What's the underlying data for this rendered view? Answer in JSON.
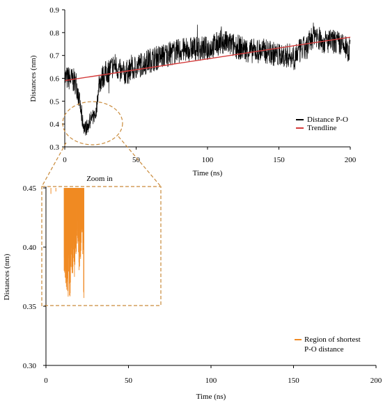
{
  "chart_data": [
    {
      "type": "line",
      "xlabel": "Time (ns)",
      "ylabel": "Distances (nm)",
      "xlim": [
        0,
        200
      ],
      "ylim": [
        0.3,
        0.9
      ],
      "xticks": [
        "0",
        "50",
        "100",
        "150",
        "200"
      ],
      "yticks": [
        "0.3",
        "0.4",
        "0.5",
        "0.6",
        "0.7",
        "0.8",
        "0.9"
      ],
      "legend_position": "right-middle",
      "series": [
        {
          "name": "Distance P-O",
          "color": "#000000",
          "x": [
            0,
            3,
            6,
            8,
            10,
            12,
            14,
            16,
            18,
            20,
            22,
            24,
            26,
            28,
            30,
            35,
            40,
            45,
            50,
            60,
            70,
            80,
            90,
            100,
            110,
            120,
            130,
            140,
            150,
            160,
            170,
            175,
            180,
            190,
            200
          ],
          "values": [
            0.6,
            0.6,
            0.59,
            0.58,
            0.52,
            0.42,
            0.38,
            0.39,
            0.42,
            0.43,
            0.45,
            0.58,
            0.6,
            0.62,
            0.63,
            0.66,
            0.62,
            0.63,
            0.65,
            0.68,
            0.7,
            0.72,
            0.73,
            0.73,
            0.76,
            0.74,
            0.72,
            0.72,
            0.7,
            0.7,
            0.74,
            0.8,
            0.76,
            0.76,
            0.72
          ]
        },
        {
          "name": "Trendline",
          "color": "#d43a3a",
          "x": [
            0,
            200
          ],
          "values": [
            0.59,
            0.78
          ]
        }
      ]
    },
    {
      "type": "line",
      "xlabel": "Time (ns)",
      "ylabel": "Distances (nm)",
      "xlim": [
        0,
        200
      ],
      "ylim": [
        0.3,
        0.45
      ],
      "xticks": [
        "0",
        "50",
        "100",
        "150",
        "200"
      ],
      "yticks": [
        "0.30",
        "0.35",
        "0.40",
        "0.45"
      ],
      "legend_position": "bottom-right",
      "series": [
        {
          "name": "Region of shortest P-O distance",
          "color": "#f08a24",
          "x": [
            11,
            12,
            13,
            14,
            15,
            16,
            17,
            18,
            19,
            20,
            21,
            22,
            23
          ],
          "values": [
            0.38,
            0.37,
            0.36,
            0.356,
            0.36,
            0.38,
            0.37,
            0.39,
            0.4,
            0.38,
            0.39,
            0.41,
            0.353
          ]
        }
      ]
    }
  ],
  "annotation": {
    "zoom_label": "Zoom in"
  },
  "legend_bottom": {
    "line1": "Region of shortest",
    "line2": "P-O distance"
  }
}
